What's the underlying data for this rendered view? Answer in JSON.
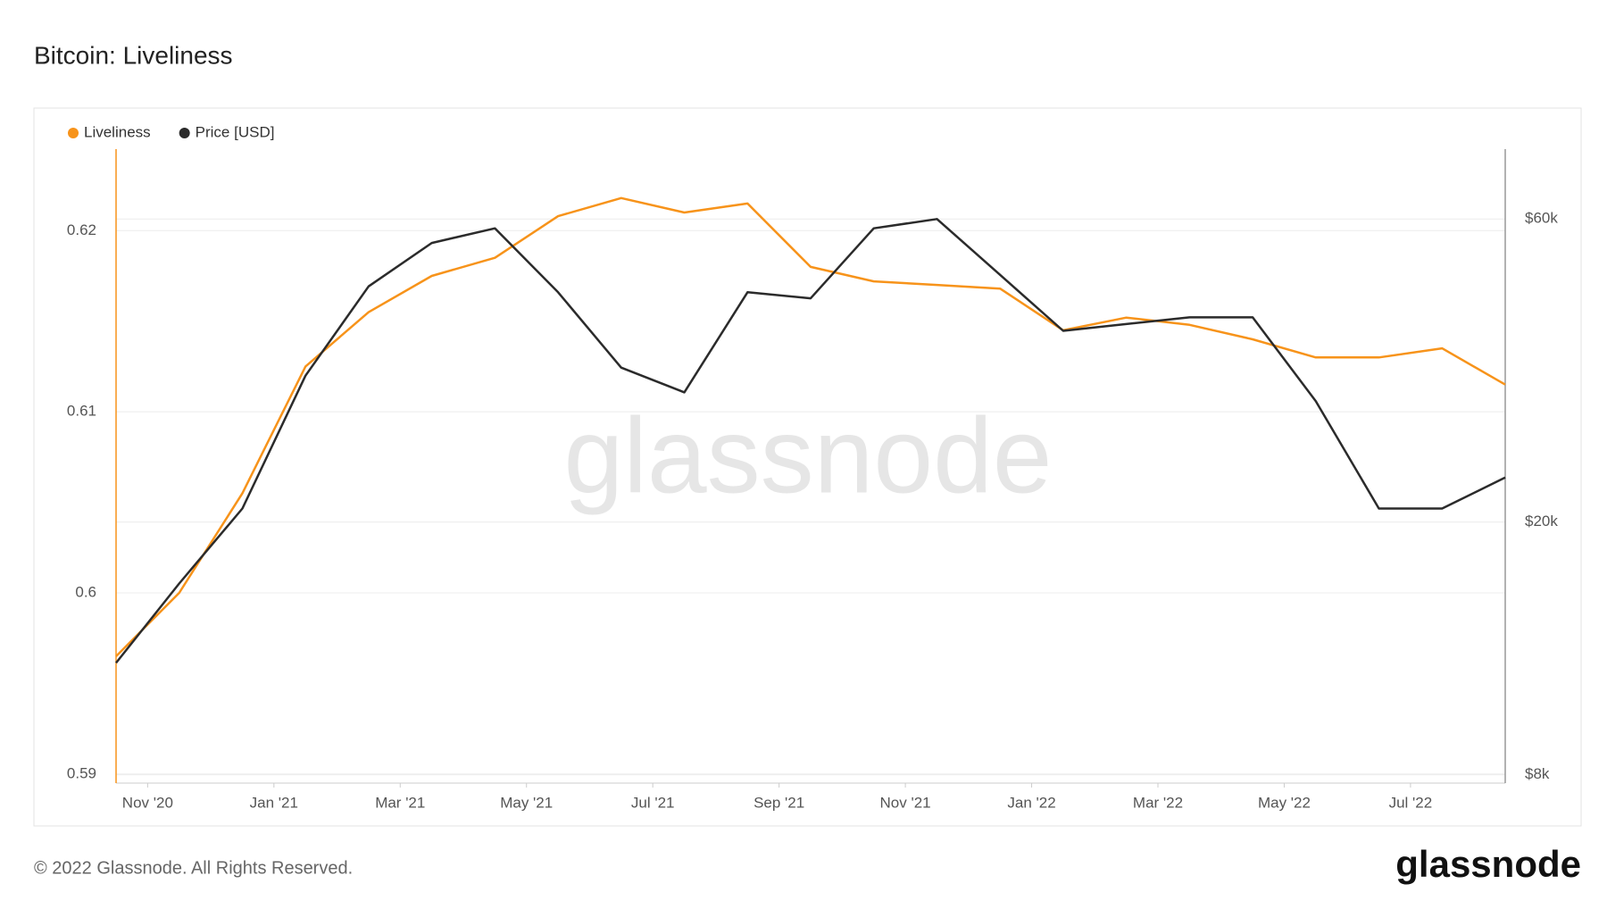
{
  "chart_data": {
    "type": "line",
    "title": "Bitcoin: Liveliness",
    "x": [
      "2020-10",
      "2020-11",
      "2020-12",
      "2021-01",
      "2021-02",
      "2021-03",
      "2021-04",
      "2021-05",
      "2021-06",
      "2021-07",
      "2021-08",
      "2021-09",
      "2021-10",
      "2021-11",
      "2021-12",
      "2022-01",
      "2022-02",
      "2022-03",
      "2022-04",
      "2022-05",
      "2022-06",
      "2022-07",
      "2022-08"
    ],
    "xlim": [
      "2020-10",
      "2022-08"
    ],
    "xticks": [
      {
        "value": "2020-11",
        "label": "Nov '20"
      },
      {
        "value": "2021-01",
        "label": "Jan '21"
      },
      {
        "value": "2021-03",
        "label": "Mar '21"
      },
      {
        "value": "2021-05",
        "label": "May '21"
      },
      {
        "value": "2021-07",
        "label": "Jul '21"
      },
      {
        "value": "2021-09",
        "label": "Sep '21"
      },
      {
        "value": "2021-11",
        "label": "Nov '21"
      },
      {
        "value": "2022-01",
        "label": "Jan '22"
      },
      {
        "value": "2022-03",
        "label": "Mar '22"
      },
      {
        "value": "2022-05",
        "label": "May '22"
      },
      {
        "value": "2022-07",
        "label": "Jul '22"
      }
    ],
    "ylim": [
      0.5895,
      0.6245
    ],
    "yticks": [
      0.59,
      0.6,
      0.61,
      0.62
    ],
    "y2lim": [
      7760,
      77300
    ],
    "y2_log_scale": true,
    "y2ticks": [
      {
        "value": 8000,
        "label": "$8k"
      },
      {
        "value": 20000,
        "label": "$20k"
      },
      {
        "value": 60000,
        "label": "$60k"
      }
    ],
    "grid": true,
    "legend": "top-left",
    "series": [
      {
        "name": "Liveliness",
        "color": "#f7931a",
        "values": [
          0.5965,
          0.6,
          0.6055,
          0.6125,
          0.6155,
          0.6175,
          0.6185,
          0.6208,
          0.6218,
          0.621,
          0.6215,
          0.618,
          0.6172,
          0.617,
          0.6168,
          0.6145,
          0.6152,
          0.6148,
          0.614,
          0.613,
          0.613,
          0.6135,
          0.6115
        ]
      },
      {
        "name": "Price [USD]",
        "color": "#2b2b2b",
        "axis": "y2",
        "values": [
          12000,
          16000,
          21000,
          34000,
          47000,
          55000,
          58000,
          46000,
          35000,
          32000,
          46000,
          45000,
          58000,
          60000,
          49000,
          40000,
          41000,
          42000,
          42000,
          31000,
          21000,
          21000,
          23500
        ]
      }
    ],
    "watermark": "glassnode",
    "footer": "© 2022 Glassnode. All Rights Reserved.",
    "logo": "glassnode"
  }
}
